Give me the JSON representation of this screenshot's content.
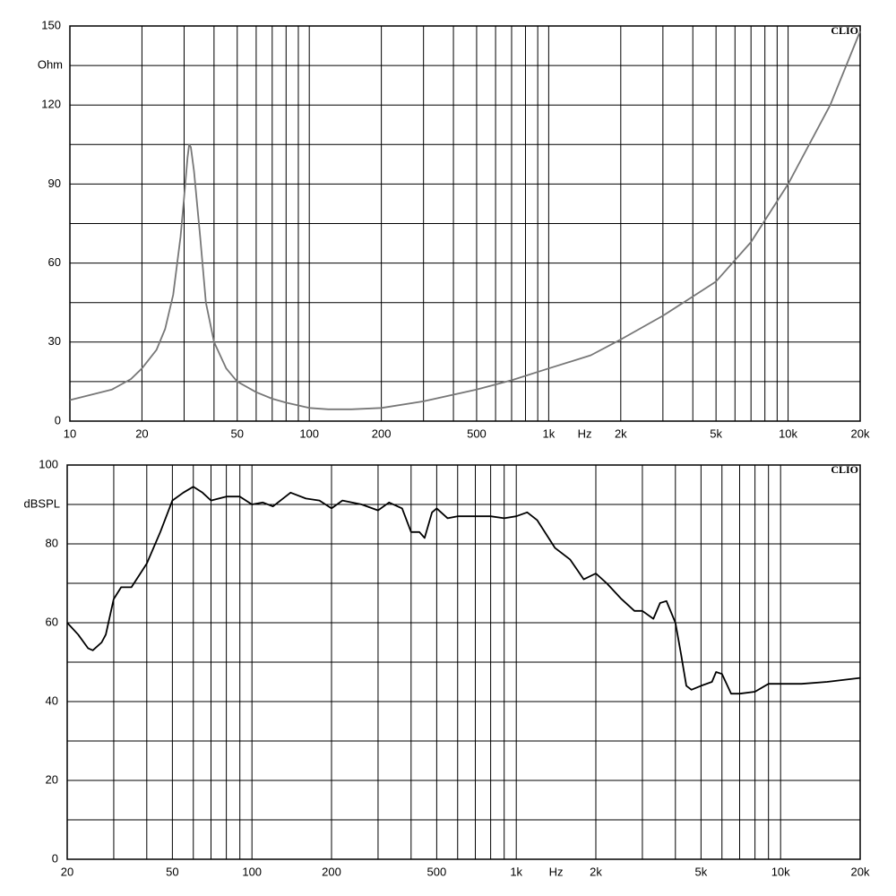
{
  "chart_data": [
    {
      "type": "line",
      "xscale": "log",
      "y_label": "Ohm",
      "x_label": "Hz",
      "watermark": "CLIO",
      "color": "#777777",
      "xlim": [
        10,
        20000
      ],
      "ylim": [
        0,
        150
      ],
      "xticks": [
        10,
        20,
        50,
        100,
        200,
        500,
        {
          "value": 1000,
          "label": "1k"
        },
        {
          "value": 2000,
          "label": "2k"
        },
        {
          "value": 5000,
          "label": "5k"
        },
        {
          "value": 10000,
          "label": "10k"
        },
        {
          "value": 20000,
          "label": "20k"
        }
      ],
      "xminor": [
        30,
        40,
        60,
        70,
        80,
        90,
        300,
        400,
        600,
        700,
        800,
        900,
        3000,
        4000,
        6000,
        7000,
        8000,
        9000
      ],
      "yticks": [
        0,
        30,
        60,
        90,
        120,
        150
      ],
      "yminor": [
        15,
        45,
        75,
        105,
        135
      ],
      "grid": true,
      "x": [
        10,
        15,
        18,
        20,
        23,
        25,
        27,
        29,
        30,
        31,
        31.5,
        32,
        33,
        35,
        37,
        40,
        45,
        50,
        60,
        70,
        80,
        100,
        120,
        150,
        200,
        300,
        500,
        700,
        1000,
        1500,
        2000,
        3000,
        5000,
        7000,
        10000,
        15000,
        20000
      ],
      "values": [
        8,
        12,
        16,
        20,
        27,
        35,
        48,
        70,
        85,
        100,
        105,
        104,
        95,
        70,
        45,
        30,
        20,
        15,
        11,
        8.5,
        7,
        5,
        4.5,
        4.5,
        5,
        7.5,
        12,
        15.5,
        20,
        25,
        31,
        40,
        53,
        68,
        90,
        120,
        148
      ]
    },
    {
      "type": "line",
      "xscale": "log",
      "y_label": "dBSPL",
      "x_label": "Hz",
      "watermark": "CLIO",
      "color": "#000000",
      "xlim": [
        20,
        20000
      ],
      "ylim": [
        0,
        100
      ],
      "xticks": [
        20,
        50,
        100,
        200,
        500,
        {
          "value": 1000,
          "label": "1k"
        },
        {
          "value": 2000,
          "label": "2k"
        },
        {
          "value": 5000,
          "label": "5k"
        },
        {
          "value": 10000,
          "label": "10k"
        },
        {
          "value": 20000,
          "label": "20k"
        }
      ],
      "xminor": [
        30,
        40,
        60,
        70,
        80,
        90,
        300,
        400,
        600,
        700,
        800,
        900,
        3000,
        4000,
        6000,
        7000,
        8000,
        9000
      ],
      "yticks": [
        0,
        20,
        40,
        60,
        80,
        100
      ],
      "yminor": [
        10,
        30,
        50,
        70,
        90
      ],
      "grid": true,
      "x": [
        20,
        22,
        24,
        25,
        27,
        28,
        30,
        32,
        35,
        40,
        45,
        50,
        55,
        60,
        65,
        70,
        80,
        90,
        100,
        110,
        120,
        140,
        160,
        180,
        200,
        220,
        260,
        300,
        330,
        370,
        400,
        430,
        450,
        480,
        500,
        550,
        600,
        700,
        800,
        900,
        1000,
        1100,
        1200,
        1400,
        1600,
        1800,
        2000,
        2200,
        2500,
        2800,
        3000,
        3300,
        3500,
        3700,
        4000,
        4200,
        4400,
        4600,
        5000,
        5500,
        5700,
        6000,
        6500,
        7000,
        8000,
        9000,
        10000,
        12000,
        15000,
        20000
      ],
      "values": [
        60,
        57,
        53.5,
        53,
        55,
        57,
        66,
        69,
        69,
        75,
        83,
        91,
        93,
        94.5,
        93,
        91,
        92,
        92,
        90,
        90.5,
        89.5,
        93,
        91.5,
        91,
        89,
        91,
        90,
        88.5,
        90.5,
        89,
        83,
        83,
        81.5,
        88,
        89,
        86.5,
        87,
        87,
        87,
        86.5,
        87,
        88,
        86,
        79,
        76,
        71,
        72.5,
        70,
        66,
        63,
        63,
        61,
        65,
        65.5,
        60,
        52,
        44,
        43,
        44,
        45,
        47.5,
        47,
        42,
        42,
        42.5,
        44.5,
        44.5,
        44.5,
        45,
        46
      ]
    }
  ]
}
